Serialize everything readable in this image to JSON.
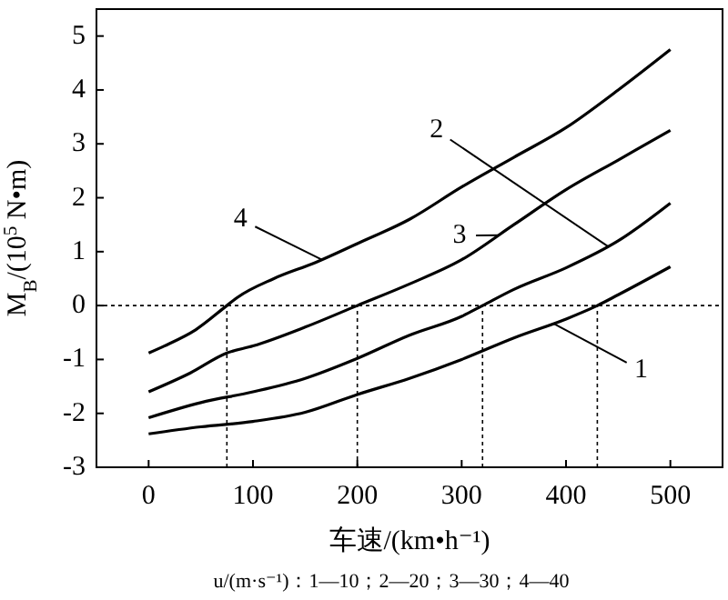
{
  "chart_data": {
    "type": "line",
    "xlabel": "车速/(km•h⁻¹)",
    "ylabel": "M$_{B}$/(10$^{5}$ N•m)",
    "annotations": [
      "u/(m·s⁻¹)：1—10；2—20；3—30；4—40"
    ],
    "xlim": [
      -50,
      550
    ],
    "ylim": [
      -3,
      5.5
    ],
    "xticks": [
      0,
      100,
      200,
      300,
      400,
      500
    ],
    "yticks": [
      -3,
      -2,
      -1,
      0,
      1,
      2,
      3,
      4,
      5
    ],
    "grid": false,
    "marker": "none",
    "line_style": "solid",
    "series": [
      {
        "name": "1",
        "color": "#000000",
        "x": [
          0,
          50,
          100,
          150,
          200,
          250,
          300,
          350,
          400,
          430,
          450,
          500
        ],
        "values": [
          -2.38,
          -2.25,
          -2.15,
          -1.98,
          -1.65,
          -1.35,
          -1.0,
          -0.6,
          -0.25,
          0,
          0.2,
          0.72
        ]
      },
      {
        "name": "2",
        "color": "#000000",
        "x": [
          0,
          50,
          100,
          150,
          200,
          250,
          300,
          320,
          350,
          400,
          450,
          500
        ],
        "values": [
          -2.08,
          -1.8,
          -1.6,
          -1.35,
          -0.98,
          -0.55,
          -0.2,
          0,
          0.3,
          0.7,
          1.2,
          1.9
        ]
      },
      {
        "name": "3",
        "color": "#000000",
        "x": [
          0,
          40,
          75,
          100,
          150,
          200,
          250,
          300,
          350,
          400,
          450,
          500
        ],
        "values": [
          -1.6,
          -1.25,
          -0.88,
          -0.75,
          -0.4,
          0,
          0.4,
          0.85,
          1.5,
          2.15,
          2.7,
          3.25
        ]
      },
      {
        "name": "4",
        "color": "#000000",
        "x": [
          0,
          15,
          45,
          75,
          85,
          120,
          160,
          200,
          250,
          300,
          350,
          400,
          450,
          500
        ],
        "values": [
          -0.88,
          -0.75,
          -0.45,
          0,
          0.15,
          0.5,
          0.8,
          1.15,
          1.6,
          2.2,
          2.75,
          3.3,
          4.0,
          4.75
        ]
      }
    ],
    "ref_lines": [
      {
        "axis": "y",
        "value": 0,
        "line_style": "dotted"
      },
      {
        "axis": "x",
        "value": 75,
        "line_style": "dotted"
      },
      {
        "axis": "x",
        "value": 200,
        "line_style": "dotted"
      },
      {
        "axis": "x",
        "value": 320,
        "line_style": "dotted"
      },
      {
        "axis": "x",
        "value": 430,
        "line_style": "dotted"
      }
    ]
  }
}
